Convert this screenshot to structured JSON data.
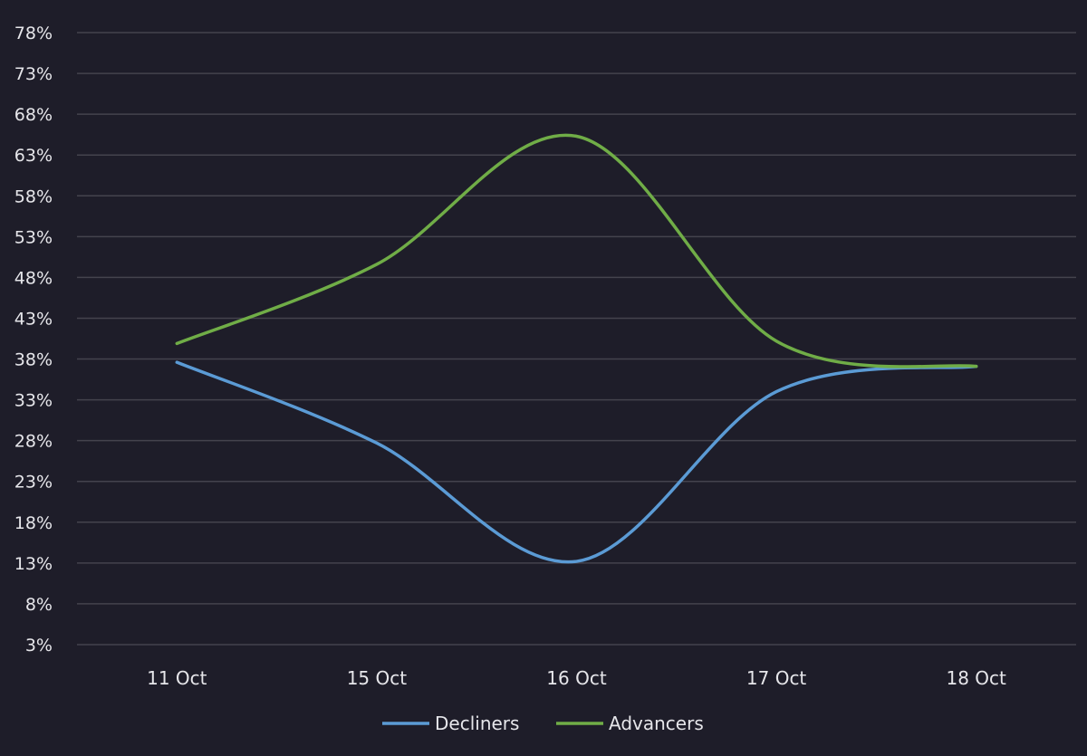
{
  "chart_data": {
    "type": "line",
    "smooth": true,
    "categories": [
      "11 Oct",
      "15 Oct",
      "16 Oct",
      "17 Oct",
      "18 Oct"
    ],
    "y_ticks": [
      "3%",
      "8%",
      "13%",
      "18%",
      "23%",
      "28%",
      "33%",
      "38%",
      "43%",
      "48%",
      "53%",
      "58%",
      "63%",
      "68%",
      "73%",
      "78%"
    ],
    "ylim": [
      3,
      78
    ],
    "grid": true,
    "legend_position": "bottom",
    "series": [
      {
        "name": "Decliners",
        "color": "#5b9bd5",
        "values": [
          37.6,
          27.7,
          13.2,
          34.0,
          37.1
        ]
      },
      {
        "name": "Advancers",
        "color": "#70ad47",
        "values": [
          39.9,
          49.6,
          65.3,
          40.2,
          37.1
        ]
      }
    ]
  }
}
